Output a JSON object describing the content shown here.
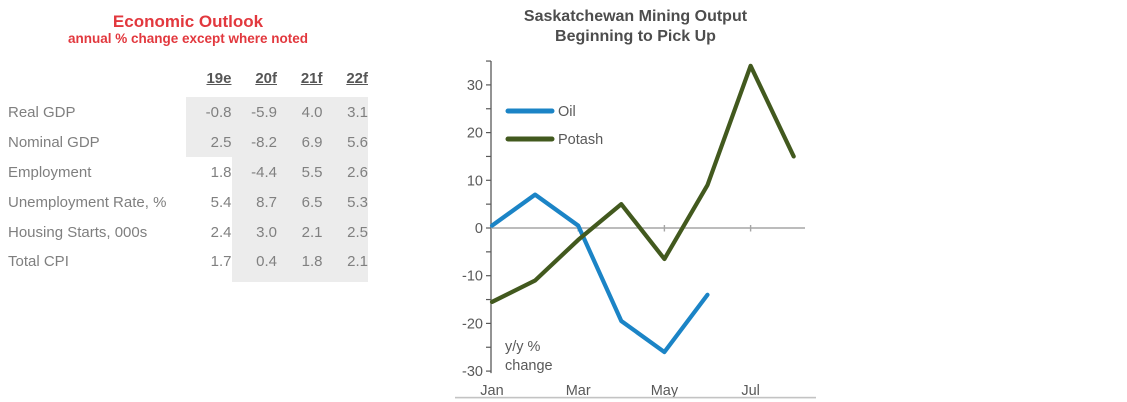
{
  "table": {
    "title": "Economic Outlook",
    "subtitle": "annual % change except where noted",
    "columns": [
      "19e",
      "20f",
      "21f",
      "22f"
    ],
    "rows": [
      {
        "label": "Real GDP",
        "values": [
          "-0.8",
          "-5.9",
          "4.0",
          "3.1"
        ],
        "shaded_from": 0
      },
      {
        "label": "Nominal GDP",
        "values": [
          "2.5",
          "-8.2",
          "6.9",
          "5.6"
        ],
        "shaded_from": 0
      },
      {
        "label": "Employment",
        "values": [
          "1.8",
          "-4.4",
          "5.5",
          "2.6"
        ],
        "shaded_from": 1
      },
      {
        "label": "Unemployment Rate, %",
        "values": [
          "5.4",
          "8.7",
          "6.5",
          "5.3"
        ],
        "shaded_from": 1
      },
      {
        "label": "Housing Starts, 000s",
        "values": [
          "2.4",
          "3.0",
          "2.1",
          "2.5"
        ],
        "shaded_from": 1
      },
      {
        "label": "Total CPI",
        "values": [
          "1.7",
          "0.4",
          "1.8",
          "2.1"
        ],
        "shaded_from": 1
      }
    ],
    "accent_color": "#e2383e",
    "shade_color": "#ececec"
  },
  "chart_data": {
    "type": "line",
    "title": "Saskatchewan Mining Output Beginning to Pick Up",
    "title_lines": [
      "Saskatchewan Mining Output",
      "Beginning to Pick Up"
    ],
    "categories": [
      "Jan",
      "Feb",
      "Mar",
      "Apr",
      "May",
      "Jun",
      "Jul",
      "Aug"
    ],
    "series": [
      {
        "name": "Oil",
        "color": "#1b84c6",
        "values": [
          0.5,
          7,
          0.5,
          -19.5,
          -26,
          -14,
          null,
          null
        ]
      },
      {
        "name": "Potash",
        "color": "#42591e",
        "values": [
          -15.5,
          -11,
          -2.5,
          5,
          -6.5,
          9,
          34,
          15
        ]
      }
    ],
    "ylim": [
      -30,
      35
    ],
    "y_major_ticks": [
      30,
      20,
      10,
      0,
      -10,
      -20,
      -30
    ],
    "y_minor_step": 5,
    "x_tick_labels": [
      "Jan",
      "Mar",
      "May",
      "Jul"
    ],
    "annotation": "y/y % change",
    "annotation_lines": [
      "y/y %",
      "change"
    ],
    "zero_line": true,
    "grid": false,
    "legend_position": "upper-left-inside",
    "axis_color": "#595959",
    "zero_line_color": "#a6a6a6"
  }
}
